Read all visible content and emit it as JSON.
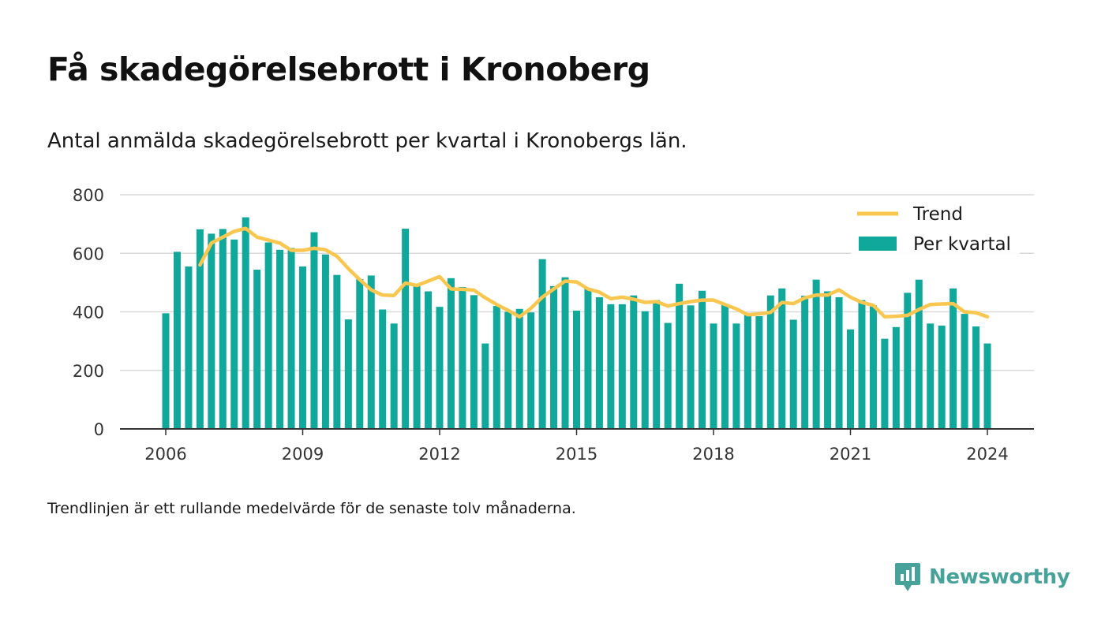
{
  "header": {
    "title": "Få skadegörelsebrott i Kronoberg",
    "subtitle": "Antal anmälda skadegörelsebrott per kvartal i Kronobergs län."
  },
  "footer": {
    "note": "Trendlinjen är ett rullande medelvärde för de senaste tolv månaderna.",
    "brand": "Newsworthy"
  },
  "colors": {
    "bar": "#0fa89a",
    "trend": "#f9c74f",
    "grid": "#d9d9d9",
    "axis": "#333333",
    "brand": "#47a39a"
  },
  "chart_data": {
    "type": "bar",
    "x_ticks": [
      "2006",
      "2009",
      "2012",
      "2015",
      "2018",
      "2021",
      "2024"
    ],
    "y_ticks": [
      "0",
      "200",
      "400",
      "600",
      "800"
    ],
    "ylim": [
      0,
      800
    ],
    "xlim": [
      2005.0,
      2025.0
    ],
    "grid": true,
    "legend_position": "top-right",
    "series": [
      {
        "name": "Per kvartal",
        "type": "bar",
        "x": [
          2006.0,
          2006.25,
          2006.5,
          2006.75,
          2007.0,
          2007.25,
          2007.5,
          2007.75,
          2008.0,
          2008.25,
          2008.5,
          2008.75,
          2009.0,
          2009.25,
          2009.5,
          2009.75,
          2010.0,
          2010.25,
          2010.5,
          2010.75,
          2011.0,
          2011.25,
          2011.5,
          2011.75,
          2012.0,
          2012.25,
          2012.5,
          2012.75,
          2013.0,
          2013.25,
          2013.5,
          2013.75,
          2014.0,
          2014.25,
          2014.5,
          2014.75,
          2015.0,
          2015.25,
          2015.5,
          2015.75,
          2016.0,
          2016.25,
          2016.5,
          2016.75,
          2017.0,
          2017.25,
          2017.5,
          2017.75,
          2018.0,
          2018.25,
          2018.5,
          2018.75,
          2019.0,
          2019.25,
          2019.5,
          2019.75,
          2020.0,
          2020.25,
          2020.5,
          2020.75,
          2021.0,
          2021.25,
          2021.5,
          2021.75,
          2022.0,
          2022.25,
          2022.5,
          2022.75,
          2023.0,
          2023.25,
          2023.5,
          2023.75,
          2024.0
        ],
        "values": [
          395,
          605,
          555,
          682,
          667,
          683,
          647,
          723,
          544,
          637,
          612,
          618,
          555,
          672,
          596,
          526,
          374,
          512,
          524,
          408,
          360,
          684,
          495,
          470,
          417,
          515,
          485,
          457,
          292,
          420,
          400,
          410,
          398,
          580,
          488,
          518,
          404,
          479,
          450,
          426,
          426,
          456,
          402,
          440,
          362,
          496,
          422,
          472,
          360,
          426,
          360,
          396,
          385,
          456,
          480,
          373,
          455,
          510,
          470,
          450,
          340,
          440,
          422,
          308,
          348,
          465,
          510,
          360,
          353,
          480,
          393,
          350,
          292
        ]
      },
      {
        "name": "Trend",
        "type": "line",
        "x": [
          2006.75,
          2007.0,
          2007.25,
          2007.5,
          2007.75,
          2008.0,
          2008.25,
          2008.5,
          2008.75,
          2009.0,
          2009.25,
          2009.5,
          2009.75,
          2010.0,
          2010.25,
          2010.5,
          2010.75,
          2011.0,
          2011.25,
          2011.5,
          2011.75,
          2012.0,
          2012.25,
          2012.5,
          2012.75,
          2013.0,
          2013.25,
          2013.5,
          2013.75,
          2014.0,
          2014.25,
          2014.5,
          2014.75,
          2015.0,
          2015.25,
          2015.5,
          2015.75,
          2016.0,
          2016.25,
          2016.5,
          2016.75,
          2017.0,
          2017.25,
          2017.5,
          2017.75,
          2018.0,
          2018.25,
          2018.5,
          2018.75,
          2019.0,
          2019.25,
          2019.5,
          2019.75,
          2020.0,
          2020.25,
          2020.5,
          2020.75,
          2021.0,
          2021.25,
          2021.5,
          2021.75,
          2022.0,
          2022.25,
          2022.5,
          2022.75,
          2023.0,
          2023.25,
          2023.5,
          2023.75,
          2024.0
        ],
        "values": [
          560,
          635,
          655,
          675,
          685,
          655,
          645,
          635,
          610,
          610,
          617,
          612,
          590,
          548,
          510,
          475,
          457,
          456,
          498,
          490,
          505,
          520,
          478,
          477,
          474,
          448,
          425,
          405,
          383,
          412,
          450,
          478,
          505,
          502,
          478,
          467,
          445,
          450,
          443,
          432,
          435,
          420,
          428,
          435,
          440,
          440,
          425,
          410,
          390,
          393,
          398,
          432,
          428,
          448,
          457,
          457,
          475,
          450,
          432,
          422,
          383,
          385,
          388,
          408,
          425,
          427,
          428,
          400,
          397,
          383
        ]
      }
    ]
  }
}
